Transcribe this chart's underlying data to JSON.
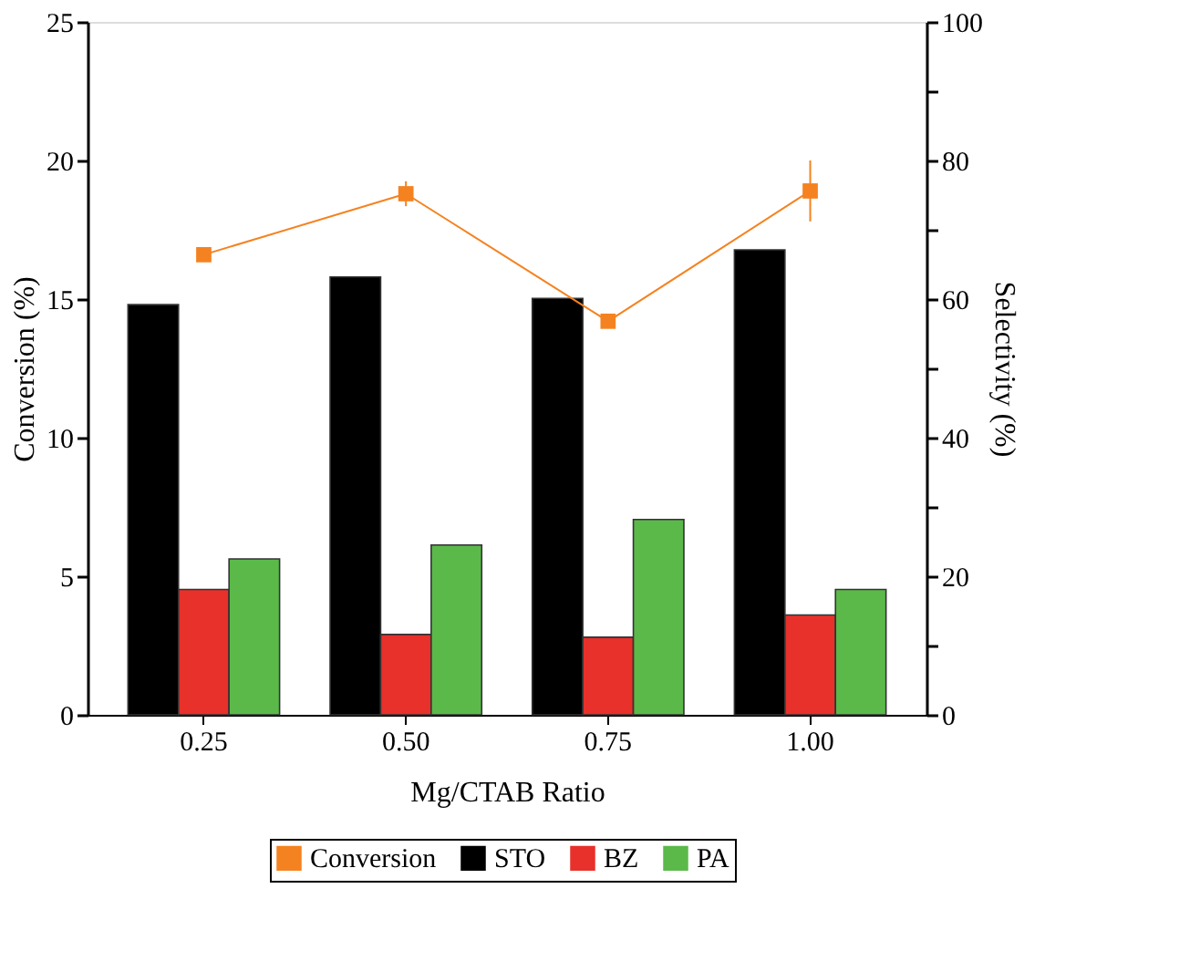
{
  "chart_data": {
    "type": "bar",
    "xlabel": "Mg/CTAB Ratio",
    "ylabel": "Conversion (%)",
    "y2label": "Selectivity (%)",
    "categories": [
      "0.25",
      "0.50",
      "0.75",
      "1.00"
    ],
    "series": [
      {
        "name": "Conversion",
        "type": "line",
        "color": "#f58220",
        "marker": "square",
        "values": [
          16.6,
          18.8,
          14.2,
          18.9
        ],
        "errors": [
          null,
          0.45,
          null,
          1.1
        ]
      },
      {
        "name": "STO",
        "axis": "y2",
        "color": "#000000",
        "values": [
          59.2,
          63.2,
          60.1,
          67.1
        ]
      },
      {
        "name": "BZ",
        "axis": "y2",
        "color": "#e8312a",
        "values": [
          18.1,
          11.6,
          11.2,
          14.4
        ]
      },
      {
        "name": "PA",
        "axis": "y2",
        "color": "#5bb94a",
        "values": [
          22.5,
          24.5,
          28.2,
          18.1
        ]
      }
    ],
    "ylim": [
      0,
      25
    ],
    "yticks": [
      0,
      {
        "value": 2.5,
        "label": null
      },
      5,
      {
        "value": 7.5,
        "label": null
      },
      10,
      {
        "value": 12.5,
        "label": null
      },
      15,
      {
        "value": 17.5,
        "label": null
      },
      20,
      {
        "value": 22.5,
        "label": null
      },
      25
    ],
    "y2lim": [
      0,
      100
    ],
    "y2ticks": [
      0,
      {
        "value": 10,
        "label": null
      },
      20,
      {
        "value": 30,
        "label": null
      },
      40,
      {
        "value": 50,
        "label": null
      },
      60,
      {
        "value": 70,
        "label": null
      },
      80,
      {
        "value": 90,
        "label": null
      },
      100
    ],
    "legend": "bottom",
    "grid": false
  }
}
